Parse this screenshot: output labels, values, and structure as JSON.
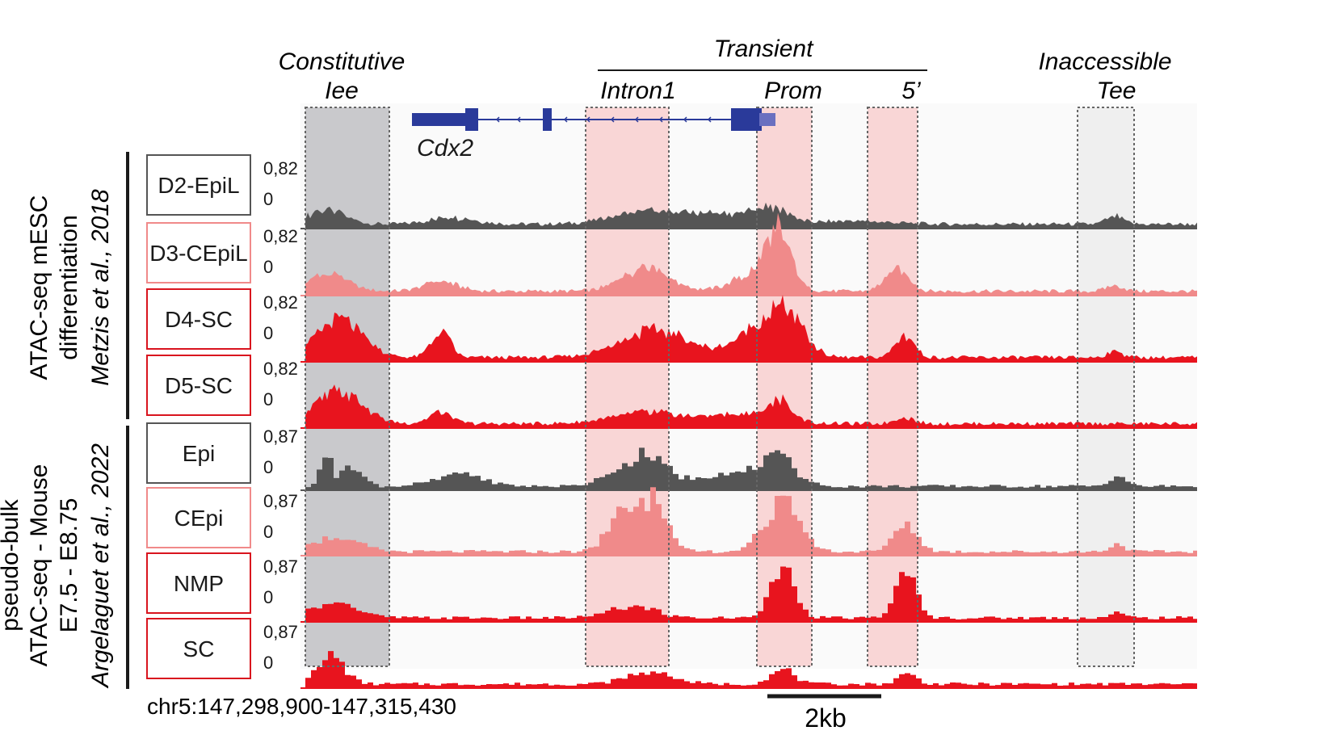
{
  "header": {
    "constitutive": "Constitutive",
    "constitutive_name": "Iee",
    "transient": "Transient",
    "intron": "Intron1",
    "prom": "Prom",
    "five": "5’",
    "inaccessible": "Inaccessible",
    "inaccessible_name": "Tee",
    "gene": "Cdx2"
  },
  "groups": [
    {
      "line1": "ATAC-seq mESC",
      "line2": "differentiation",
      "citation": "Metzis et al., 2018"
    },
    {
      "line1": "pseudo-bulk",
      "line2": "ATAC-seq - Mouse",
      "line3": "E7.5 - E8.75",
      "citation": "Argelaguet et al., 2022"
    }
  ],
  "tracks": [
    {
      "label": "D2-EpiL",
      "max": "0,82",
      "min": "0",
      "color": "#555555",
      "box": "#555555"
    },
    {
      "label": "D3-CEpiL",
      "max": "0,82",
      "min": "0",
      "color": "#f08a8a",
      "box": "#f08a8a"
    },
    {
      "label": "D4-SC",
      "max": "0,82",
      "min": "0",
      "color": "#e8141e",
      "box": "#d9141e"
    },
    {
      "label": "D5-SC",
      "max": "0,82",
      "min": "0",
      "color": "#e8141e",
      "box": "#d9141e"
    },
    {
      "label": "Epi",
      "max": "0,87",
      "min": "0",
      "color": "#555555",
      "box": "#555555"
    },
    {
      "label": "CEpi",
      "max": "0,87",
      "min": "0",
      "color": "#f08a8a",
      "box": "#f08a8a"
    },
    {
      "label": "NMP",
      "max": "0,87",
      "min": "0",
      "color": "#e8141e",
      "box": "#d9141e"
    },
    {
      "label": "SC",
      "max": "0,87",
      "min": "0",
      "color": "#e8141e",
      "box": "#d9141e"
    }
  ],
  "footer": {
    "coords": "chr5:147,298,900-147,315,430",
    "scale": "2kb"
  },
  "colors": {
    "gene": "#2a3a9a",
    "constitutive_shade": "#c9c9cc",
    "transient_shade": "#f9d6d6",
    "inaccessible_shade": "#efefef"
  }
}
